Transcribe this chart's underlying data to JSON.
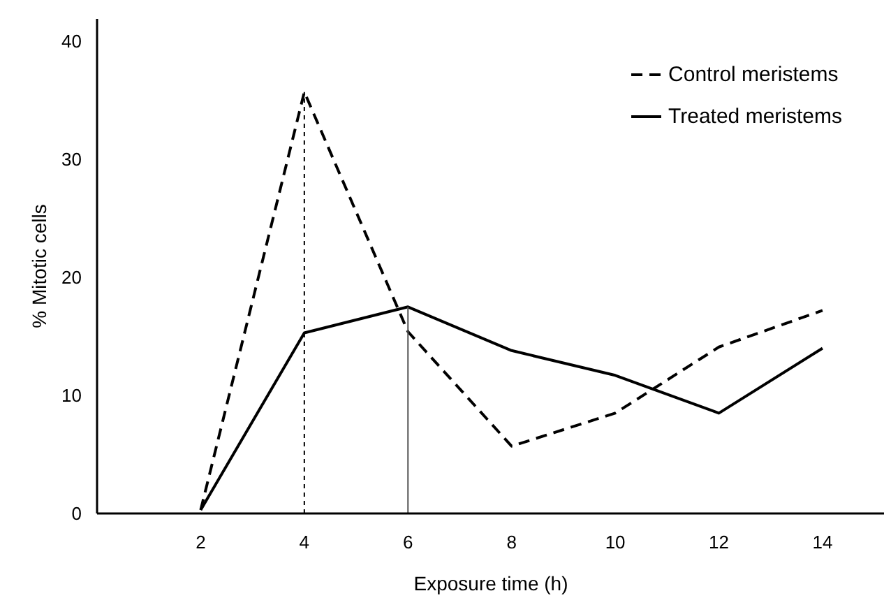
{
  "chart_data": {
    "type": "line",
    "xlabel": "Exposure time (h)",
    "ylabel": "% Mitotic cells",
    "x": [
      2,
      4,
      6,
      8,
      10,
      12,
      14
    ],
    "series": [
      {
        "name": "Control meristems",
        "color": "#000000",
        "line_style": "dashed",
        "values": [
          0.3,
          35.7,
          15.4,
          5.7,
          8.5,
          14.1,
          17.2
        ]
      },
      {
        "name": "Treated meristems",
        "color": "#000000",
        "line_style": "solid",
        "values": [
          0.3,
          15.3,
          17.5,
          13.8,
          11.7,
          8.5,
          14.0
        ]
      }
    ],
    "ref_lines": [
      {
        "axis": "x",
        "value": 4,
        "color": "#000000",
        "line_style": "dotted"
      },
      {
        "axis": "x",
        "value": 6,
        "color": "#555555",
        "line_style": "solid"
      }
    ],
    "xlim": [
      0,
      15.2
    ],
    "ylim": [
      0,
      41.9
    ],
    "xticks": [
      2,
      4,
      6,
      8,
      10,
      12,
      14
    ],
    "yticks": [
      0,
      10,
      20,
      30,
      40
    ],
    "legend": "top right",
    "grid": false,
    "marker": "none"
  }
}
